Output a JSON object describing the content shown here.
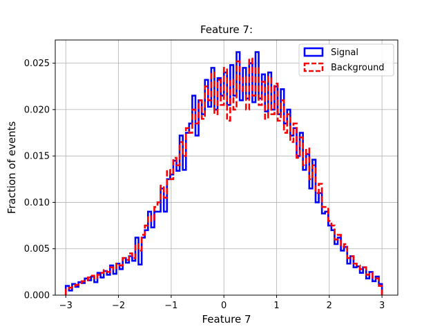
{
  "chart_data": {
    "type": "histogram-step",
    "title": "Feature 7:",
    "xlabel": "Feature 7",
    "ylabel": "Fraction of events",
    "xlim": [
      -3.2,
      3.3
    ],
    "ylim": [
      0.0,
      0.0275
    ],
    "xticks": [
      -3,
      -2,
      -1,
      0,
      1,
      2,
      3
    ],
    "xtick_labels": [
      "−3",
      "−2",
      "−1",
      "0",
      "1",
      "2",
      "3"
    ],
    "yticks": [
      0.0,
      0.005,
      0.01,
      0.015,
      0.02,
      0.025
    ],
    "ytick_labels": [
      "0.000",
      "0.005",
      "0.010",
      "0.015",
      "0.020",
      "0.025"
    ],
    "grid": true,
    "legend_position": "top-right",
    "bin_edges_range": [
      -3.0,
      3.0
    ],
    "n_bins": 100,
    "series": [
      {
        "name": "Signal",
        "color": "#0000ff",
        "linestyle": "solid",
        "values": [
          0.001,
          0.0005,
          0.0012,
          0.0009,
          0.0014,
          0.0013,
          0.0018,
          0.0016,
          0.002,
          0.0014,
          0.0024,
          0.0019,
          0.0026,
          0.0022,
          0.0032,
          0.0023,
          0.0034,
          0.0028,
          0.004,
          0.0035,
          0.0042,
          0.0037,
          0.0062,
          0.0033,
          0.0062,
          0.007,
          0.009,
          0.0073,
          0.009,
          0.009,
          0.0115,
          0.009,
          0.0125,
          0.013,
          0.0145,
          0.0134,
          0.0172,
          0.0135,
          0.0175,
          0.0185,
          0.0215,
          0.0172,
          0.021,
          0.0195,
          0.0232,
          0.0203,
          0.0245,
          0.02,
          0.0234,
          0.0215,
          0.024,
          0.0205,
          0.0248,
          0.0215,
          0.0262,
          0.021,
          0.0245,
          0.0212,
          0.025,
          0.0208,
          0.0262,
          0.0212,
          0.0238,
          0.0198,
          0.024,
          0.02,
          0.0225,
          0.0195,
          0.0222,
          0.0185,
          0.02,
          0.0172,
          0.018,
          0.015,
          0.0175,
          0.0135,
          0.0152,
          0.0115,
          0.0146,
          0.01,
          0.011,
          0.0088,
          0.009,
          0.0075,
          0.007,
          0.0055,
          0.0062,
          0.0048,
          0.0052,
          0.0034,
          0.0042,
          0.003,
          0.0031,
          0.0024,
          0.003,
          0.0018,
          0.0025,
          0.0015,
          0.002,
          0.0012
        ]
      },
      {
        "name": "Background",
        "color": "#ff0000",
        "linestyle": "dashed",
        "values": [
          0.0006,
          0.0008,
          0.001,
          0.0011,
          0.0013,
          0.0015,
          0.0016,
          0.0019,
          0.0021,
          0.0018,
          0.0022,
          0.0024,
          0.0027,
          0.0025,
          0.003,
          0.0028,
          0.0034,
          0.0032,
          0.004,
          0.0038,
          0.0045,
          0.004,
          0.0055,
          0.0048,
          0.0065,
          0.0075,
          0.0085,
          0.008,
          0.0095,
          0.01,
          0.0118,
          0.0105,
          0.0135,
          0.0125,
          0.0148,
          0.014,
          0.0165,
          0.015,
          0.018,
          0.0175,
          0.02,
          0.0185,
          0.021,
          0.019,
          0.0225,
          0.021,
          0.024,
          0.0195,
          0.0232,
          0.0205,
          0.0245,
          0.0188,
          0.0232,
          0.02,
          0.0252,
          0.022,
          0.0235,
          0.02,
          0.0255,
          0.0215,
          0.0245,
          0.0205,
          0.023,
          0.019,
          0.0235,
          0.0195,
          0.0228,
          0.0188,
          0.021,
          0.0175,
          0.0195,
          0.0165,
          0.0185,
          0.0148,
          0.017,
          0.014,
          0.0158,
          0.0125,
          0.014,
          0.011,
          0.012,
          0.0095,
          0.0095,
          0.008,
          0.0075,
          0.006,
          0.0065,
          0.0052,
          0.0055,
          0.004,
          0.0042,
          0.0034,
          0.0032,
          0.0028,
          0.003,
          0.0022,
          0.0024,
          0.0018,
          0.0018,
          0.001
        ]
      }
    ]
  }
}
